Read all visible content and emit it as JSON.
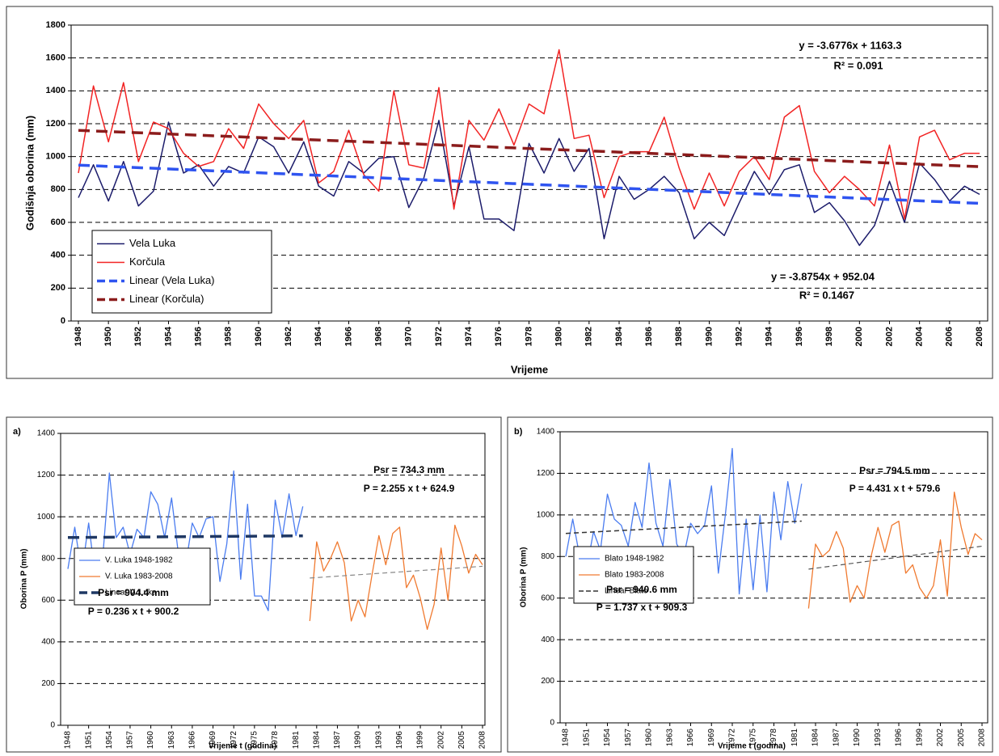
{
  "chart_data": [
    {
      "type": "line",
      "xlabel": "Vrijeme",
      "ylabel": "Godišnja oborina (mm)",
      "x": [
        1948,
        1949,
        1950,
        1951,
        1952,
        1953,
        1954,
        1955,
        1956,
        1957,
        1958,
        1959,
        1960,
        1961,
        1962,
        1963,
        1964,
        1965,
        1966,
        1967,
        1968,
        1969,
        1970,
        1971,
        1972,
        1973,
        1974,
        1975,
        1976,
        1977,
        1978,
        1979,
        1980,
        1981,
        1982,
        1983,
        1984,
        1985,
        1986,
        1987,
        1988,
        1989,
        1990,
        1991,
        1992,
        1993,
        1994,
        1995,
        1996,
        1997,
        1998,
        1999,
        2000,
        2001,
        2002,
        2003,
        2004,
        2005,
        2006,
        2007,
        2008
      ],
      "xlim": [
        1948,
        2008
      ],
      "xticks": [
        1948,
        1950,
        1952,
        1954,
        1956,
        1958,
        1960,
        1962,
        1964,
        1966,
        1968,
        1970,
        1972,
        1974,
        1976,
        1978,
        1980,
        1982,
        1984,
        1986,
        1988,
        1990,
        1992,
        1994,
        1996,
        1998,
        2000,
        2002,
        2004,
        2006,
        2008
      ],
      "ylim": [
        0,
        1800
      ],
      "yticks": [
        0,
        200,
        400,
        600,
        800,
        1000,
        1200,
        1400,
        1600,
        1800
      ],
      "grid": true,
      "legend": "lower left",
      "series": [
        {
          "name": "Vela Luka",
          "color": "#1c1c6b",
          "width": 1.5,
          "values": [
            750,
            950,
            730,
            970,
            700,
            790,
            1210,
            900,
            950,
            820,
            940,
            900,
            1120,
            1060,
            900,
            1090,
            820,
            760,
            970,
            900,
            990,
            1000,
            690,
            870,
            1220,
            700,
            1060,
            620,
            620,
            550,
            1080,
            900,
            1110,
            910,
            1050,
            500,
            880,
            740,
            800,
            880,
            780,
            500,
            600,
            520,
            720,
            910,
            770,
            920,
            950,
            660,
            720,
            610,
            460,
            580,
            850,
            600,
            960,
            860,
            730,
            820,
            770
          ]
        },
        {
          "name": "Korčula",
          "color": "#f22424",
          "width": 1.5,
          "values": [
            900,
            1430,
            1090,
            1450,
            970,
            1210,
            1170,
            1020,
            940,
            970,
            1170,
            1050,
            1320,
            1200,
            1110,
            1220,
            840,
            910,
            1160,
            890,
            790,
            1400,
            950,
            930,
            1420,
            680,
            1220,
            1100,
            1290,
            1070,
            1320,
            1260,
            1650,
            1110,
            1130,
            750,
            1000,
            1030,
            1030,
            1240,
            930,
            680,
            900,
            700,
            910,
            1000,
            860,
            1240,
            1310,
            910,
            780,
            880,
            800,
            700,
            1070,
            620,
            1120,
            1160,
            980,
            1020,
            1020
          ]
        },
        {
          "name": "Linear (Vela Luka)",
          "color": "#2f54f0",
          "width": 3.5,
          "dashed": true,
          "x": [
            1948,
            2008
          ],
          "values": [
            948.2,
            715.6
          ]
        },
        {
          "name": "Linear (Korčula)",
          "color": "#8b1c1c",
          "width": 3.5,
          "dashed": true,
          "x": [
            1948,
            2008
          ],
          "values": [
            1159.6,
            939.0
          ]
        }
      ],
      "annotations": [
        {
          "text": "y = -3.6776x + 1163.3",
          "color": "#8b1c1c"
        },
        {
          "text": "R² = 0.091",
          "color": "#8b1c1c"
        },
        {
          "text": "y = -3.8754x + 952.04",
          "color": "#3a5fe8"
        },
        {
          "text": "R² = 0.1467",
          "color": "#3a5fe8"
        }
      ]
    },
    {
      "type": "line",
      "panel_label": "a)",
      "xlabel": "Vrijeme  t (godina)",
      "ylabel": "Oborina  P (mm)",
      "x": [
        1948,
        1949,
        1950,
        1951,
        1952,
        1953,
        1954,
        1955,
        1956,
        1957,
        1958,
        1959,
        1960,
        1961,
        1962,
        1963,
        1964,
        1965,
        1966,
        1967,
        1968,
        1969,
        1970,
        1971,
        1972,
        1973,
        1974,
        1975,
        1976,
        1977,
        1978,
        1979,
        1980,
        1981,
        1982,
        1983,
        1984,
        1985,
        1986,
        1987,
        1988,
        1989,
        1990,
        1991,
        1992,
        1993,
        1994,
        1995,
        1996,
        1997,
        1998,
        1999,
        2000,
        2001,
        2002,
        2003,
        2004,
        2005,
        2006,
        2007,
        2008
      ],
      "xlim": [
        1948,
        2008
      ],
      "xticks": [
        1948,
        1951,
        1954,
        1957,
        1960,
        1963,
        1966,
        1969,
        1972,
        1975,
        1978,
        1981,
        1984,
        1987,
        1990,
        1993,
        1996,
        1999,
        2002,
        2005,
        2008
      ],
      "ylim": [
        0,
        1400
      ],
      "yticks": [
        0,
        200,
        400,
        600,
        800,
        1000,
        1200,
        1400
      ],
      "grid": true,
      "legend": "lower left",
      "series": [
        {
          "name": "V. Luka 1948-1982",
          "color": "#4a7cf0",
          "width": 1.3,
          "values": [
            750,
            950,
            730,
            970,
            700,
            790,
            1210,
            900,
            950,
            820,
            940,
            900,
            1120,
            1060,
            900,
            1090,
            820,
            760,
            970,
            900,
            990,
            1000,
            690,
            870,
            1220,
            700,
            1060,
            620,
            620,
            550,
            1080,
            900,
            1110,
            910,
            1050,
            null,
            null,
            null,
            null,
            null,
            null,
            null,
            null,
            null,
            null,
            null,
            null,
            null,
            null,
            null,
            null,
            null,
            null,
            null,
            null,
            null,
            null,
            null,
            null,
            null,
            null
          ]
        },
        {
          "name": "V. Luka 1983-2008",
          "color": "#f07a30",
          "width": 1.3,
          "values": [
            null,
            null,
            null,
            null,
            null,
            null,
            null,
            null,
            null,
            null,
            null,
            null,
            null,
            null,
            null,
            null,
            null,
            null,
            null,
            null,
            null,
            null,
            null,
            null,
            null,
            null,
            null,
            null,
            null,
            null,
            null,
            null,
            null,
            null,
            null,
            500,
            880,
            740,
            800,
            880,
            780,
            500,
            600,
            520,
            720,
            910,
            770,
            920,
            950,
            660,
            720,
            610,
            460,
            580,
            850,
            600,
            960,
            860,
            730,
            820,
            770
          ]
        },
        {
          "name": "Linear V. Luka",
          "color": "#1f3864",
          "width": 3.5,
          "dashed": true,
          "x": [
            1948,
            1982
          ],
          "values": [
            900.4,
            908.5
          ]
        },
        {
          "color": "#888888",
          "width": 1.2,
          "dashed": true,
          "x": [
            1983,
            2008
          ],
          "values": [
            706.1,
            762.5
          ]
        }
      ],
      "annotations": [
        {
          "text": "Psr = 734.3 mm",
          "color": "#a0282a"
        },
        {
          "text": "P = 2.255 x t + 624.9",
          "color": "#a0282a"
        },
        {
          "text": "Psr = 904.4 mm",
          "color": "#2a2a8a"
        },
        {
          "text": "P = 0.236 x t + 900.2",
          "color": "#2a2a8a"
        }
      ]
    },
    {
      "type": "line",
      "panel_label": "b)",
      "xlabel": "Vrijeme  t (godina)",
      "ylabel": "Oborina  P (mm)",
      "x": [
        1948,
        1949,
        1950,
        1951,
        1952,
        1953,
        1954,
        1955,
        1956,
        1957,
        1958,
        1959,
        1960,
        1961,
        1962,
        1963,
        1964,
        1965,
        1966,
        1967,
        1968,
        1969,
        1970,
        1971,
        1972,
        1973,
        1974,
        1975,
        1976,
        1977,
        1978,
        1979,
        1980,
        1981,
        1982,
        1983,
        1984,
        1985,
        1986,
        1987,
        1988,
        1989,
        1990,
        1991,
        1992,
        1993,
        1994,
        1995,
        1996,
        1997,
        1998,
        1999,
        2000,
        2001,
        2002,
        2003,
        2004,
        2005,
        2006,
        2007,
        2008
      ],
      "xlim": [
        1948,
        2008
      ],
      "xticks": [
        1948,
        1951,
        1954,
        1957,
        1960,
        1963,
        1966,
        1969,
        1972,
        1975,
        1978,
        1981,
        1984,
        1987,
        1990,
        1993,
        1996,
        1999,
        2002,
        2005,
        2008
      ],
      "ylim": [
        0,
        1400
      ],
      "yticks": [
        0,
        200,
        400,
        600,
        800,
        1000,
        1200,
        1400
      ],
      "grid": true,
      "legend": "lower left",
      "series": [
        {
          "name": "Blato 1948-1982",
          "color": "#4a7cf0",
          "width": 1.3,
          "values": [
            800,
            980,
            800,
            740,
            920,
            830,
            1100,
            980,
            950,
            850,
            1060,
            940,
            1250,
            960,
            850,
            1170,
            860,
            800,
            960,
            910,
            950,
            1140,
            720,
            1000,
            1320,
            620,
            980,
            640,
            1000,
            630,
            1110,
            880,
            1160,
            960,
            1150,
            null,
            null,
            null,
            null,
            null,
            null,
            null,
            null,
            null,
            null,
            null,
            null,
            null,
            null,
            null,
            null,
            null,
            null,
            null,
            null,
            null,
            null,
            null,
            null,
            null,
            null
          ]
        },
        {
          "name": "Blato 1983-2008",
          "color": "#f07a30",
          "width": 1.3,
          "values": [
            null,
            null,
            null,
            null,
            null,
            null,
            null,
            null,
            null,
            null,
            null,
            null,
            null,
            null,
            null,
            null,
            null,
            null,
            null,
            null,
            null,
            null,
            null,
            null,
            null,
            null,
            null,
            null,
            null,
            null,
            null,
            null,
            null,
            null,
            null,
            550,
            860,
            800,
            830,
            920,
            840,
            580,
            660,
            600,
            800,
            940,
            820,
            950,
            970,
            720,
            760,
            650,
            600,
            660,
            880,
            610,
            1110,
            940,
            810,
            910,
            880
          ]
        },
        {
          "name": "Linear Blato",
          "color": "#333333",
          "width": 1.5,
          "dashed": true,
          "x": [
            1948,
            1982
          ],
          "values": [
            911.0,
            970.1
          ]
        },
        {
          "color": "#555555",
          "width": 1.2,
          "dashed": true,
          "x": [
            1983,
            2008
          ],
          "values": [
            739.1,
            849.9
          ]
        }
      ],
      "annotations": [
        {
          "text": "Psr = 794.5 mm",
          "color": "#a0282a"
        },
        {
          "text": "P = 4.431 x t + 579.6",
          "color": "#a0282a"
        },
        {
          "text": "Psr = 940.6 mm",
          "color": "#2a2a8a"
        },
        {
          "text": "P = 1.737 x t + 909.3",
          "color": "#2a2a8a"
        }
      ]
    }
  ]
}
